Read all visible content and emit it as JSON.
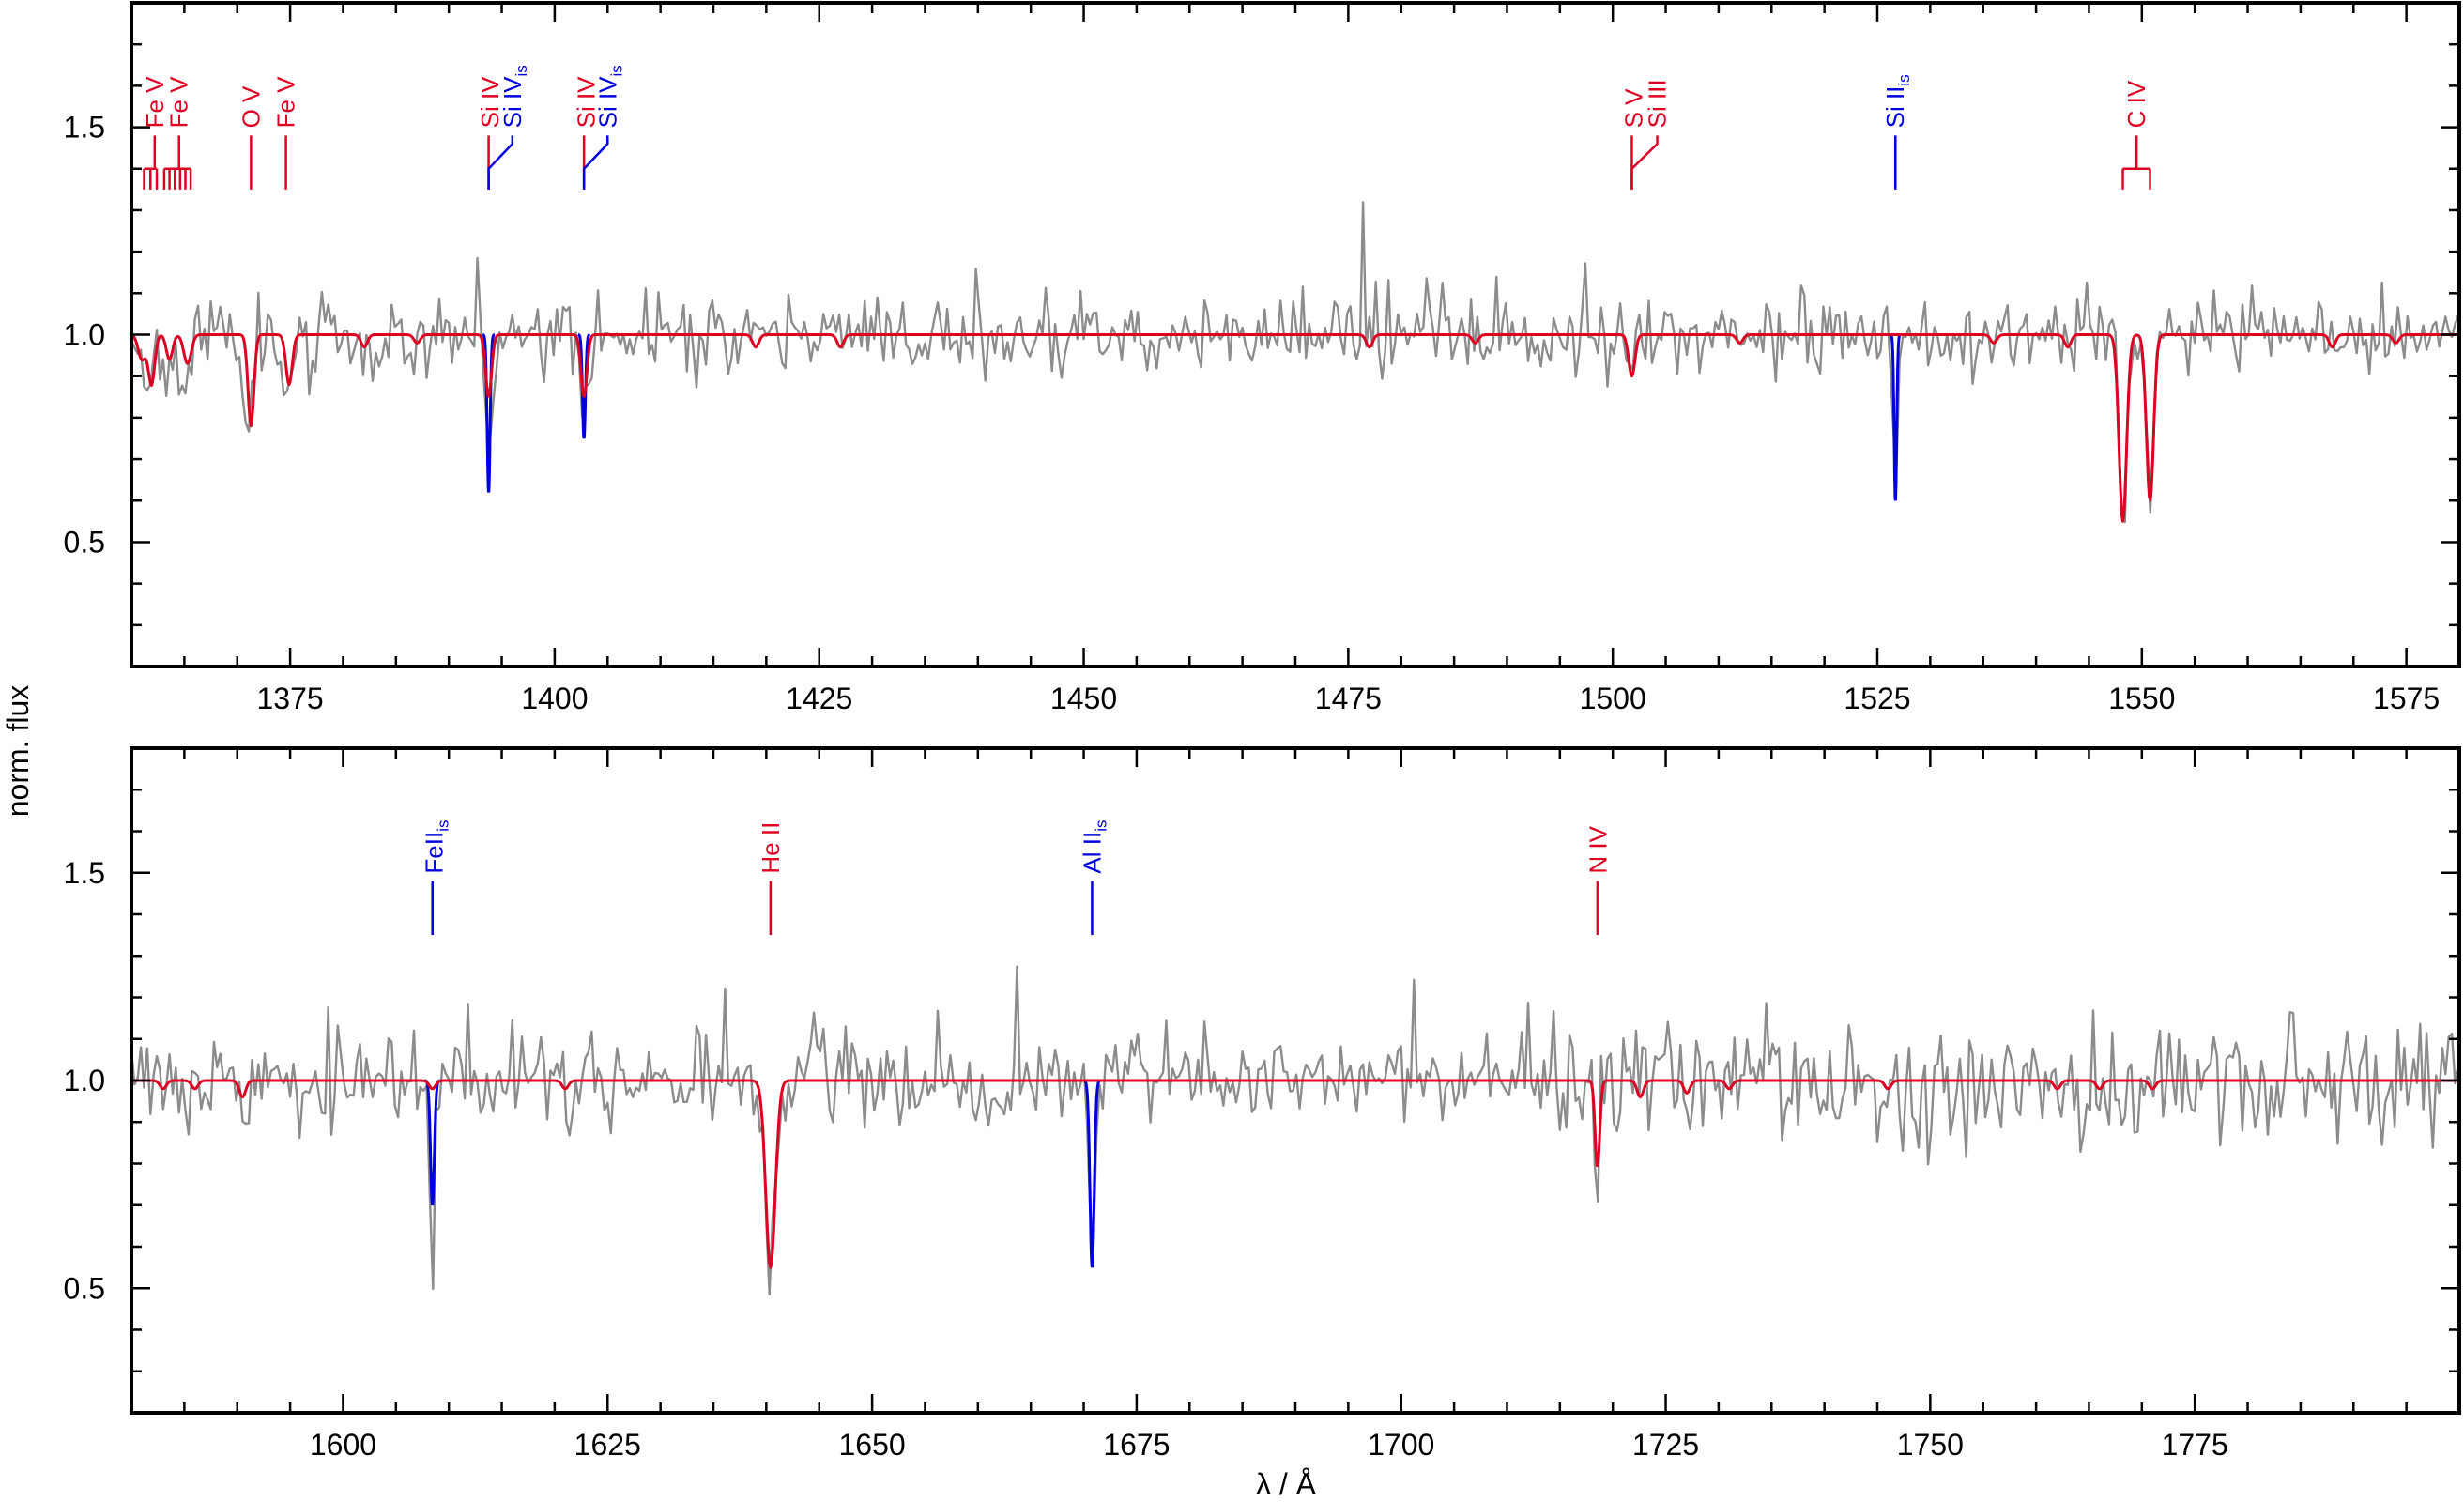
{
  "chart_data": [
    {
      "type": "line",
      "panel": "top",
      "xlim": [
        1360,
        1580
      ],
      "ylim": [
        0.2,
        1.8
      ],
      "xticks": [
        1375,
        1400,
        1425,
        1450,
        1475,
        1500,
        1525,
        1550,
        1575
      ],
      "yticks": [
        0.5,
        1.0,
        1.5
      ],
      "xtick_labels": [
        "1375",
        "1400",
        "1425",
        "1450",
        "1475",
        "1500",
        "1525",
        "1550",
        "1575"
      ],
      "ytick_labels": [
        "0.5",
        "1.0",
        "1.5"
      ],
      "continuum": 1.0,
      "series": [
        {
          "role": "observed",
          "color": "#8c8c8c",
          "noise": 0.045,
          "seed": 11,
          "lines": [
            [
              1361.5,
              0.1,
              0.55
            ],
            [
              1363.5,
              0.08,
              0.55
            ],
            [
              1365.2,
              0.1,
              0.55
            ],
            [
              1371.0,
              0.2,
              0.35
            ],
            [
              1374.8,
              0.12,
              0.4
            ],
            [
              1393.8,
              0.3,
              0.28
            ],
            [
              1402.8,
              0.2,
              0.3
            ],
            [
              1501.8,
              0.08,
              0.3
            ],
            [
              1526.7,
              0.32,
              0.22
            ],
            [
              1548.2,
              0.45,
              0.32
            ],
            [
              1550.8,
              0.4,
              0.32
            ],
            [
              1376.8,
              0.08,
              0.5
            ],
            [
              1383.0,
              0.06,
              0.5
            ]
          ]
        },
        {
          "role": "model-interstellar",
          "color": "#0000dd",
          "lines": [
            [
              1393.76,
              0.38,
              0.14
            ],
            [
              1402.77,
              0.25,
              0.14
            ],
            [
              1526.71,
              0.4,
              0.12
            ]
          ]
        },
        {
          "role": "model-photospheric",
          "color": "#dd0022",
          "lines": [
            [
              1361.0,
              0.06,
              0.35
            ],
            [
              1361.9,
              0.12,
              0.3
            ],
            [
              1363.6,
              0.06,
              0.3
            ],
            [
              1365.3,
              0.07,
              0.35
            ],
            [
              1371.3,
              0.22,
              0.28
            ],
            [
              1374.9,
              0.12,
              0.3
            ],
            [
              1393.76,
              0.15,
              0.28
            ],
            [
              1402.77,
              0.15,
              0.28
            ],
            [
              1382.0,
              0.03,
              0.3
            ],
            [
              1387.0,
              0.02,
              0.3
            ],
            [
              1419.0,
              0.03,
              0.3
            ],
            [
              1427.0,
              0.03,
              0.3
            ],
            [
              1477.0,
              0.03,
              0.3
            ],
            [
              1487.0,
              0.02,
              0.3
            ],
            [
              1501.8,
              0.1,
              0.3
            ],
            [
              1512.0,
              0.02,
              0.3
            ],
            [
              1536.0,
              0.02,
              0.3
            ],
            [
              1543.0,
              0.03,
              0.3
            ],
            [
              1548.2,
              0.45,
              0.36
            ],
            [
              1550.77,
              0.4,
              0.34
            ],
            [
              1568.0,
              0.03,
              0.3
            ],
            [
              1574.0,
              0.02,
              0.3
            ]
          ]
        }
      ],
      "annotations": [
        {
          "text": "Fe V",
          "color": "#dd0022",
          "label_x": 1362.2,
          "ticks": [
            1361.2,
            1361.8,
            1362.4
          ],
          "type": "fork"
        },
        {
          "text": "Fe V",
          "color": "#dd0022",
          "label_x": 1364.5,
          "ticks": [
            1363.1,
            1363.6,
            1364.1,
            1364.6,
            1365.1,
            1365.6
          ],
          "type": "fork"
        },
        {
          "text": "O V",
          "color": "#dd0022",
          "label_x": 1371.3,
          "ticks": [
            1371.3
          ],
          "type": "single"
        },
        {
          "text": "Fe V",
          "color": "#dd0022",
          "label_x": 1374.6,
          "ticks": [
            1374.6
          ],
          "type": "single"
        },
        {
          "text": "Si IV",
          "color": "#dd0022",
          "label_x": 1393.9,
          "ticks": [
            1393.76
          ],
          "type": "single"
        },
        {
          "text": "Si IV",
          "sub": "is",
          "color": "#0000dd",
          "label_x": 1396.0,
          "ticks": [
            1393.76
          ],
          "type": "bend"
        },
        {
          "text": "Si IV",
          "color": "#dd0022",
          "label_x": 1403.0,
          "ticks": [
            1402.77
          ],
          "type": "single"
        },
        {
          "text": "Si IV",
          "sub": "is",
          "color": "#0000dd",
          "label_x": 1405.0,
          "ticks": [
            1402.77
          ],
          "type": "bend"
        },
        {
          "text": "S V",
          "color": "#dd0022",
          "label_x": 1502.0,
          "ticks": [
            1501.8
          ],
          "type": "single"
        },
        {
          "text": "Si III",
          "color": "#dd0022",
          "label_x": 1504.2,
          "ticks": [
            1501.8
          ],
          "type": "bend"
        },
        {
          "text": "Si II",
          "sub": "is",
          "color": "#0000dd",
          "label_x": 1526.7,
          "ticks": [
            1526.71
          ],
          "type": "single"
        },
        {
          "text": "C IV",
          "color": "#dd0022",
          "label_x": 1549.5,
          "ticks": [
            1548.2,
            1550.77
          ],
          "type": "fork"
        }
      ]
    },
    {
      "type": "line",
      "panel": "bottom",
      "xlim": [
        1580,
        1800
      ],
      "ylim": [
        0.2,
        1.8
      ],
      "xticks": [
        1600,
        1625,
        1650,
        1675,
        1700,
        1725,
        1750,
        1775
      ],
      "yticks": [
        0.5,
        1.0,
        1.5
      ],
      "xtick_labels": [
        "1600",
        "1625",
        "1650",
        "1675",
        "1700",
        "1725",
        "1750",
        "1775"
      ],
      "ytick_labels": [
        "0.5",
        "1.0",
        "1.5"
      ],
      "continuum": 1.0,
      "series": [
        {
          "role": "observed",
          "color": "#8c8c8c",
          "noise": 0.05,
          "seed": 29,
          "lines": [
            [
              1608.45,
              0.38,
              0.25
            ],
            [
              1640.4,
              0.43,
              0.55
            ],
            [
              1670.8,
              0.43,
              0.3
            ],
            [
              1718.5,
              0.28,
              0.2
            ],
            [
              1590.5,
              0.06,
              0.4
            ],
            [
              1621.0,
              0.05,
              0.4
            ],
            [
              1660.0,
              0.07,
              1.2
            ],
            [
              1741.5,
              0.12,
              0.2
            ],
            [
              1727.0,
              0.05,
              0.3
            ]
          ]
        },
        {
          "role": "model-interstellar",
          "color": "#0000dd",
          "lines": [
            [
              1608.45,
              0.3,
              0.18
            ],
            [
              1670.79,
              0.45,
              0.2
            ]
          ]
        },
        {
          "role": "model-photospheric",
          "color": "#dd0022",
          "lines": [
            [
              1583.0,
              0.02,
              0.3
            ],
            [
              1586.0,
              0.02,
              0.3
            ],
            [
              1590.5,
              0.04,
              0.3
            ],
            [
              1608.45,
              0.02,
              0.3
            ],
            [
              1621.0,
              0.02,
              0.3
            ],
            [
              1640.4,
              0.45,
              0.45
            ],
            [
              1718.55,
              0.21,
              0.22
            ],
            [
              1722.6,
              0.04,
              0.3
            ],
            [
              1727.0,
              0.03,
              0.3
            ],
            [
              1731.0,
              0.02,
              0.3
            ],
            [
              1746.0,
              0.02,
              0.3
            ],
            [
              1762.0,
              0.02,
              0.3
            ],
            [
              1766.0,
              0.02,
              0.3
            ],
            [
              1771.0,
              0.02,
              0.3
            ]
          ]
        }
      ],
      "annotations": [
        {
          "text": "FeII",
          "sub": "is",
          "color": "#0000dd",
          "label_x": 1608.6,
          "ticks": [
            1608.45
          ],
          "type": "single"
        },
        {
          "text": "He II",
          "color": "#dd0022",
          "label_x": 1640.4,
          "ticks": [
            1640.4
          ],
          "type": "single"
        },
        {
          "text": "Al II",
          "sub": "is",
          "color": "#0000dd",
          "label_x": 1670.8,
          "ticks": [
            1670.79
          ],
          "type": "single"
        },
        {
          "text": "N IV",
          "color": "#dd0022",
          "label_x": 1718.6,
          "ticks": [
            1718.55
          ],
          "type": "single"
        }
      ]
    }
  ],
  "axes": {
    "ylabel": "norm. flux",
    "xlabel": "λ / Å"
  }
}
